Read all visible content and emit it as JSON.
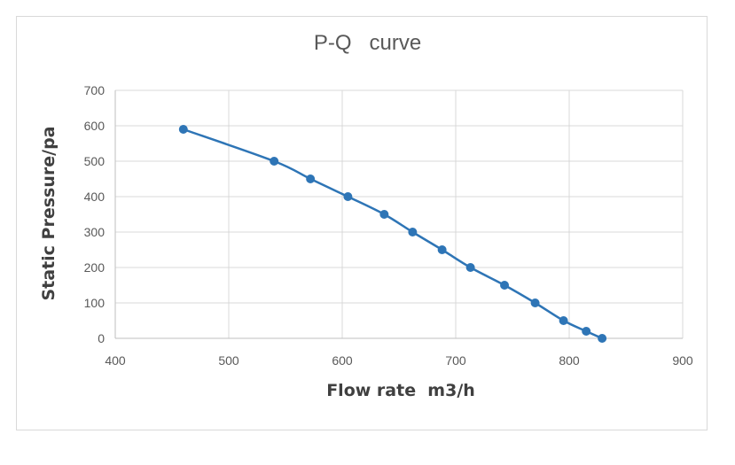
{
  "chart_data": {
    "type": "scatter",
    "title": "P-Q   curve",
    "xlabel": "Flow rate  m3/h",
    "ylabel": "Static Pressure/pa",
    "xlim": [
      400,
      900
    ],
    "ylim": [
      0,
      700
    ],
    "x_ticks": [
      "400",
      "500",
      "600",
      "700",
      "800",
      "900"
    ],
    "y_ticks": [
      "0",
      "100",
      "200",
      "300",
      "400",
      "500",
      "600",
      "700"
    ],
    "grid": true,
    "legend": "none",
    "series": [
      {
        "color": "#2e75b6",
        "x": [
          460,
          540,
          572,
          605,
          637,
          662,
          688,
          713,
          743,
          770,
          795,
          815,
          829
        ],
        "y": [
          590,
          500,
          450,
          400,
          350,
          300,
          250,
          200,
          150,
          100,
          50,
          20,
          0
        ]
      }
    ]
  }
}
